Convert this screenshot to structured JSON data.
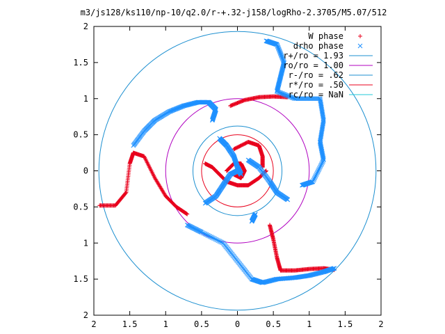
{
  "chart_data": {
    "type": "scatter",
    "title": "m3/js128/ks110/np-10/q2.0/r-+.32-j158/logRho-2.3705/M5.07/512",
    "xlabel": "",
    "ylabel": "",
    "xlim": [
      -2,
      2
    ],
    "ylim": [
      -2,
      2
    ],
    "x_ticks": [
      "2",
      "1.5",
      "1",
      "0.5",
      "0",
      "0.5",
      "1",
      "1.5",
      "2"
    ],
    "y_ticks": [
      "2",
      "1.5",
      "1",
      "0.5",
      "0",
      "0.5",
      "1",
      "1.5",
      "2"
    ],
    "grid": false,
    "legend_position": "top-right",
    "legend": [
      {
        "label": "W phase",
        "kind": "marker-plus",
        "color": "#e8001c"
      },
      {
        "label": "drho phase",
        "kind": "marker-x",
        "color": "#1e90ff"
      },
      {
        "label": "r+/ro = 1.93",
        "kind": "line",
        "color": "#1c8fd0"
      },
      {
        "label": "ro/ro = 1.00",
        "kind": "line",
        "color": "#b000c0"
      },
      {
        "label": "r-/ro = .62",
        "kind": "line",
        "color": "#1c8fd0"
      },
      {
        "label": "r*/ro = .50",
        "kind": "line",
        "color": "#e8001c"
      },
      {
        "label": "rc/ro = NaN",
        "kind": "line",
        "color": "#22c8d8"
      }
    ],
    "circles": [
      {
        "name": "r+/ro = 1.93",
        "r": 1.93,
        "color": "#1c8fd0"
      },
      {
        "name": "ro/ro = 1.00",
        "r": 1.0,
        "color": "#b000c0"
      },
      {
        "name": "r-/ro = .62",
        "r": 0.62,
        "color": "#1c8fd0"
      },
      {
        "name": "r*/ro = .50",
        "r": 0.5,
        "color": "#e8001c"
      }
    ],
    "series": [
      {
        "name": "W phase",
        "color": "#e8001c",
        "arms": [
          [
            [
              -0.1,
              0.9
            ],
            [
              0.1,
              0.98
            ],
            [
              0.3,
              1.02
            ],
            [
              0.5,
              1.03
            ],
            [
              0.7,
              1.02
            ]
          ],
          [
            [
              0.45,
              -0.75
            ],
            [
              0.5,
              -0.95
            ],
            [
              0.55,
              -1.2
            ],
            [
              0.6,
              -1.38
            ],
            [
              0.8,
              -1.38
            ],
            [
              1.0,
              -1.36
            ],
            [
              1.2,
              -1.35
            ],
            [
              1.35,
              -1.37
            ]
          ],
          [
            [
              -1.92,
              -0.48
            ],
            [
              -1.7,
              -0.48
            ],
            [
              -1.55,
              -0.3
            ],
            [
              -1.5,
              0.1
            ],
            [
              -1.45,
              0.25
            ],
            [
              -1.3,
              0.2
            ],
            [
              -1.15,
              -0.1
            ],
            [
              -1.0,
              -0.35
            ],
            [
              -0.85,
              -0.5
            ],
            [
              -0.7,
              -0.6
            ]
          ],
          [
            [
              -0.05,
              0.3
            ],
            [
              0.15,
              0.4
            ],
            [
              0.3,
              0.35
            ],
            [
              0.35,
              0.2
            ],
            [
              0.35,
              0.05
            ]
          ],
          [
            [
              -0.45,
              0.1
            ],
            [
              -0.35,
              0.05
            ],
            [
              -0.25,
              -0.05
            ],
            [
              -0.15,
              -0.15
            ],
            [
              0.0,
              -0.2
            ],
            [
              0.15,
              -0.2
            ],
            [
              0.3,
              -0.1
            ],
            [
              0.4,
              0.0
            ]
          ],
          [
            [
              -0.15,
              0.0
            ],
            [
              -0.05,
              0.1
            ],
            [
              0.05,
              0.1
            ],
            [
              0.1,
              0.0
            ],
            [
              0.05,
              -0.1
            ],
            [
              -0.05,
              -0.05
            ]
          ]
        ]
      },
      {
        "name": "drho phase",
        "color": "#1e90ff",
        "arms": [
          [
            [
              -1.45,
              0.35
            ],
            [
              -1.3,
              0.55
            ],
            [
              -1.15,
              0.7
            ],
            [
              -0.95,
              0.82
            ],
            [
              -0.75,
              0.9
            ],
            [
              -0.55,
              0.95
            ],
            [
              -0.4,
              0.95
            ],
            [
              -0.3,
              0.85
            ],
            [
              -0.35,
              0.7
            ]
          ],
          [
            [
              0.4,
              1.8
            ],
            [
              0.55,
              1.75
            ],
            [
              0.65,
              1.5
            ],
            [
              0.6,
              1.3
            ],
            [
              0.55,
              1.1
            ],
            [
              0.8,
              1.0
            ],
            [
              1.15,
              1.0
            ],
            [
              1.2,
              0.7
            ],
            [
              1.15,
              0.4
            ],
            [
              1.2,
              0.15
            ],
            [
              1.05,
              -0.15
            ],
            [
              0.9,
              -0.2
            ]
          ],
          [
            [
              1.35,
              -1.35
            ],
            [
              1.2,
              -1.4
            ],
            [
              1.0,
              -1.45
            ],
            [
              0.8,
              -1.48
            ],
            [
              0.55,
              -1.5
            ],
            [
              0.35,
              -1.55
            ],
            [
              0.2,
              -1.5
            ],
            [
              0.0,
              -1.25
            ],
            [
              -0.2,
              -1.0
            ],
            [
              -0.5,
              -0.85
            ],
            [
              -0.7,
              -0.75
            ]
          ],
          [
            [
              -0.25,
              0.45
            ],
            [
              -0.15,
              0.35
            ],
            [
              -0.05,
              0.2
            ],
            [
              0.0,
              0.05
            ],
            [
              0.05,
              -0.05
            ]
          ],
          [
            [
              -0.45,
              -0.45
            ],
            [
              -0.3,
              -0.35
            ],
            [
              -0.2,
              -0.2
            ],
            [
              -0.1,
              -0.05
            ],
            [
              0.0,
              0.0
            ]
          ],
          [
            [
              0.15,
              0.15
            ],
            [
              0.3,
              0.05
            ],
            [
              0.45,
              -0.15
            ],
            [
              0.55,
              -0.3
            ],
            [
              0.7,
              -0.4
            ]
          ],
          [
            [
              0.25,
              -0.6
            ],
            [
              0.2,
              -0.7
            ]
          ]
        ]
      }
    ]
  }
}
